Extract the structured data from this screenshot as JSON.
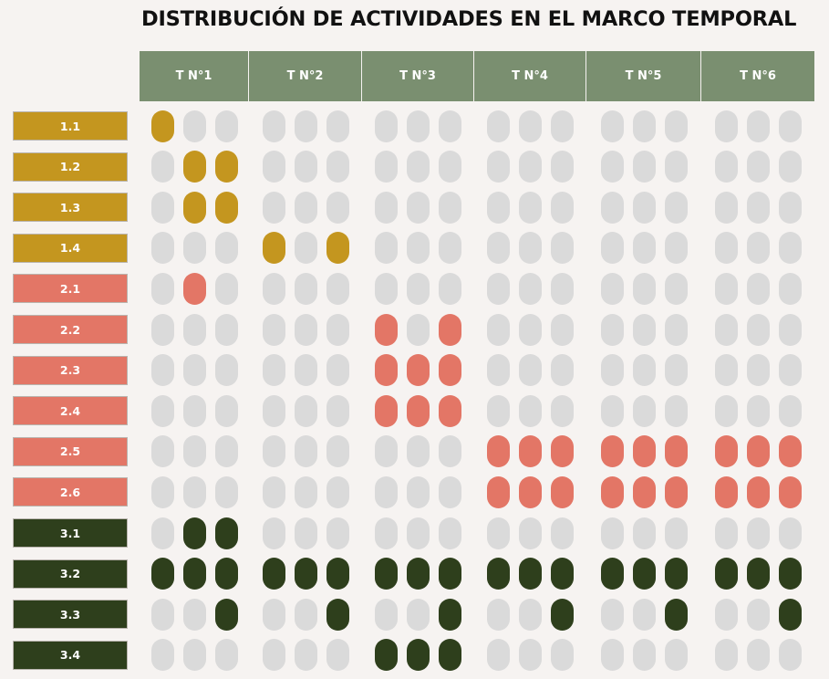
{
  "title": "DISTRIBUCIÓN DE ACTIVIDADES EN EL MARCO TEMPORAL",
  "periods": [
    "T N°1",
    "T N°2",
    "T N°3",
    "T N°4",
    "T N°5",
    "T N°6"
  ],
  "colors": {
    "inactive": "#dadada",
    "header": "#7a8f70",
    "group1": "#c4961f",
    "group2": "#e37666",
    "group3": "#2e3f1c"
  },
  "rows": [
    {
      "label": "1.1",
      "group": "group1",
      "active": [
        [
          1,
          0,
          0
        ],
        [
          0,
          0,
          0
        ],
        [
          0,
          0,
          0
        ],
        [
          0,
          0,
          0
        ],
        [
          0,
          0,
          0
        ],
        [
          0,
          0,
          0
        ]
      ]
    },
    {
      "label": "1.2",
      "group": "group1",
      "active": [
        [
          0,
          1,
          1
        ],
        [
          0,
          0,
          0
        ],
        [
          0,
          0,
          0
        ],
        [
          0,
          0,
          0
        ],
        [
          0,
          0,
          0
        ],
        [
          0,
          0,
          0
        ]
      ]
    },
    {
      "label": "1.3",
      "group": "group1",
      "active": [
        [
          0,
          1,
          1
        ],
        [
          0,
          0,
          0
        ],
        [
          0,
          0,
          0
        ],
        [
          0,
          0,
          0
        ],
        [
          0,
          0,
          0
        ],
        [
          0,
          0,
          0
        ]
      ]
    },
    {
      "label": "1.4",
      "group": "group1",
      "active": [
        [
          0,
          0,
          0
        ],
        [
          1,
          0,
          1
        ],
        [
          0,
          0,
          0
        ],
        [
          0,
          0,
          0
        ],
        [
          0,
          0,
          0
        ],
        [
          0,
          0,
          0
        ]
      ]
    },
    {
      "label": "2.1",
      "group": "group2",
      "active": [
        [
          0,
          1,
          0
        ],
        [
          0,
          0,
          0
        ],
        [
          0,
          0,
          0
        ],
        [
          0,
          0,
          0
        ],
        [
          0,
          0,
          0
        ],
        [
          0,
          0,
          0
        ]
      ]
    },
    {
      "label": "2.2",
      "group": "group2",
      "active": [
        [
          0,
          0,
          0
        ],
        [
          0,
          0,
          0
        ],
        [
          1,
          0,
          1
        ],
        [
          0,
          0,
          0
        ],
        [
          0,
          0,
          0
        ],
        [
          0,
          0,
          0
        ]
      ]
    },
    {
      "label": "2.3",
      "group": "group2",
      "active": [
        [
          0,
          0,
          0
        ],
        [
          0,
          0,
          0
        ],
        [
          1,
          1,
          1
        ],
        [
          0,
          0,
          0
        ],
        [
          0,
          0,
          0
        ],
        [
          0,
          0,
          0
        ]
      ]
    },
    {
      "label": "2.4",
      "group": "group2",
      "active": [
        [
          0,
          0,
          0
        ],
        [
          0,
          0,
          0
        ],
        [
          1,
          1,
          1
        ],
        [
          0,
          0,
          0
        ],
        [
          0,
          0,
          0
        ],
        [
          0,
          0,
          0
        ]
      ]
    },
    {
      "label": "2.5",
      "group": "group2",
      "active": [
        [
          0,
          0,
          0
        ],
        [
          0,
          0,
          0
        ],
        [
          0,
          0,
          0
        ],
        [
          1,
          1,
          1
        ],
        [
          1,
          1,
          1
        ],
        [
          1,
          1,
          1
        ]
      ]
    },
    {
      "label": "2.6",
      "group": "group2",
      "active": [
        [
          0,
          0,
          0
        ],
        [
          0,
          0,
          0
        ],
        [
          0,
          0,
          0
        ],
        [
          1,
          1,
          1
        ],
        [
          1,
          1,
          1
        ],
        [
          1,
          1,
          1
        ]
      ]
    },
    {
      "label": "3.1",
      "group": "group3",
      "active": [
        [
          0,
          1,
          1
        ],
        [
          0,
          0,
          0
        ],
        [
          0,
          0,
          0
        ],
        [
          0,
          0,
          0
        ],
        [
          0,
          0,
          0
        ],
        [
          0,
          0,
          0
        ]
      ]
    },
    {
      "label": "3.2",
      "group": "group3",
      "active": [
        [
          1,
          1,
          1
        ],
        [
          1,
          1,
          1
        ],
        [
          1,
          1,
          1
        ],
        [
          1,
          1,
          1
        ],
        [
          1,
          1,
          1
        ],
        [
          1,
          1,
          1
        ]
      ]
    },
    {
      "label": "3.3",
      "group": "group3",
      "active": [
        [
          0,
          0,
          1
        ],
        [
          0,
          0,
          1
        ],
        [
          0,
          0,
          1
        ],
        [
          0,
          0,
          1
        ],
        [
          0,
          0,
          1
        ],
        [
          0,
          0,
          1
        ]
      ]
    },
    {
      "label": "3.4",
      "group": "group3",
      "active": [
        [
          0,
          0,
          0
        ],
        [
          0,
          0,
          0
        ],
        [
          1,
          1,
          1
        ],
        [
          0,
          0,
          0
        ],
        [
          0,
          0,
          0
        ],
        [
          0,
          0,
          0
        ]
      ]
    }
  ]
}
